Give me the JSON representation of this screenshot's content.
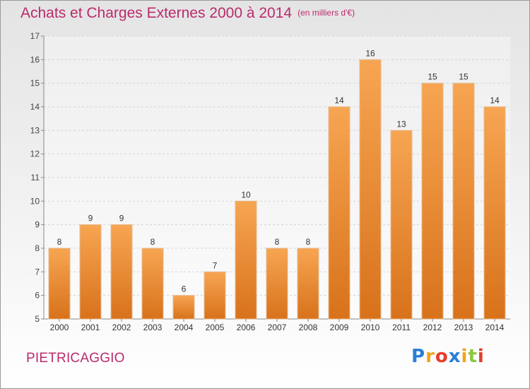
{
  "header": {
    "title": "Achats et Charges Externes 2000 à 2014",
    "unit": "(en milliers d'€)"
  },
  "footer": {
    "commune": "PIETRICAGGIO",
    "logo": {
      "text": "Proxiti",
      "letter_colors": [
        "#2a7fd4",
        "#f0a51c",
        "#e63c2a",
        "#2a7fd4",
        "#f0a51c",
        "#8dc63f",
        "#e63c2a"
      ]
    }
  },
  "colors": {
    "bar_light": "#f7a552",
    "bar_dark": "#d8721b",
    "title": "#bb2a6c"
  },
  "chart_data": {
    "type": "bar",
    "categories": [
      "2000",
      "2001",
      "2002",
      "2003",
      "2004",
      "2005",
      "2006",
      "2007",
      "2008",
      "2009",
      "2010",
      "2011",
      "2012",
      "2013",
      "2014"
    ],
    "values": [
      8,
      9,
      9,
      8,
      6,
      7,
      10,
      8,
      8,
      14,
      16,
      13,
      15,
      15,
      14
    ],
    "data_labels": [
      "8",
      "9",
      "9",
      "8",
      "6",
      "7",
      "10",
      "8",
      "8",
      "14",
      "16",
      "13",
      "15",
      "15",
      "14"
    ],
    "y_ticks": [
      "5",
      "6",
      "7",
      "8",
      "9",
      "10",
      "11",
      "12",
      "13",
      "14",
      "15",
      "16",
      "17"
    ],
    "ylim": [
      5,
      17
    ],
    "grid": true
  }
}
